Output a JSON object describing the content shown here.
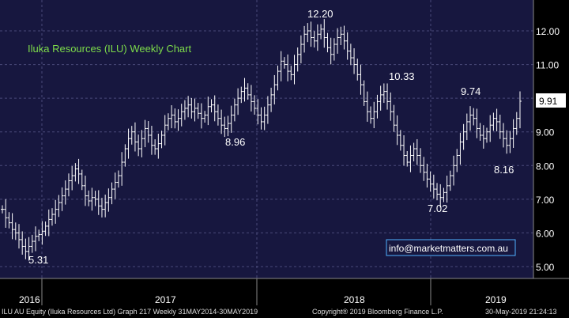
{
  "chart_data": {
    "type": "bar",
    "subtype": "weekly OHLC",
    "title": "Iluka Resources (ILU) Weekly Chart",
    "xlabel": "",
    "ylabel": "",
    "ylim": [
      4.6,
      12.7
    ],
    "y_ticks": [
      "5.00",
      "6.00",
      "7.00",
      "8.00",
      "9.00",
      "10.00",
      "11.00",
      "12.00"
    ],
    "x_year_labels": [
      "2016",
      "2017",
      "2018",
      "2019"
    ],
    "grid": true,
    "last_price_label": "9.91",
    "annotations": [
      {
        "text": "5.31",
        "value": 5.31
      },
      {
        "text": "8.96",
        "value": 8.96
      },
      {
        "text": "12.20",
        "value": 12.2
      },
      {
        "text": "10.33",
        "value": 10.33
      },
      {
        "text": "7.02",
        "value": 7.02
      },
      {
        "text": "9.74",
        "value": 9.74
      },
      {
        "text": "8.16",
        "value": 8.16
      }
    ],
    "weekly_close": [
      6.7,
      6.45,
      6.3,
      6.1,
      6.0,
      5.8,
      5.6,
      5.45,
      5.6,
      5.75,
      5.9,
      5.95,
      6.05,
      6.2,
      6.4,
      6.55,
      6.7,
      6.9,
      7.1,
      7.3,
      7.55,
      7.7,
      7.9,
      7.75,
      7.4,
      7.1,
      6.95,
      7.05,
      7.0,
      6.8,
      6.7,
      6.9,
      7.05,
      7.3,
      7.5,
      7.7,
      8.1,
      8.5,
      8.8,
      9.0,
      8.7,
      8.5,
      8.8,
      9.1,
      8.9,
      8.6,
      8.5,
      8.65,
      8.9,
      9.2,
      9.4,
      9.5,
      9.3,
      9.4,
      9.6,
      9.7,
      9.8,
      9.6,
      9.7,
      9.55,
      9.4,
      9.5,
      9.75,
      9.8,
      9.6,
      9.4,
      9.2,
      9.1,
      9.25,
      9.5,
      9.8,
      10.0,
      10.2,
      10.3,
      10.1,
      9.9,
      9.7,
      9.5,
      9.3,
      9.5,
      9.8,
      10.1,
      10.4,
      10.8,
      11.1,
      11.0,
      10.8,
      10.7,
      11.0,
      11.3,
      11.6,
      11.9,
      12.0,
      11.8,
      11.7,
      11.9,
      12.05,
      11.8,
      11.5,
      11.3,
      11.6,
      11.8,
      11.9,
      11.7,
      11.4,
      11.2,
      11.0,
      10.7,
      10.4,
      9.9,
      9.6,
      9.4,
      9.6,
      9.9,
      10.1,
      10.2,
      9.9,
      9.6,
      9.2,
      8.9,
      8.6,
      8.3,
      8.1,
      8.3,
      8.5,
      8.3,
      8.0,
      7.8,
      7.6,
      7.45,
      7.3,
      7.15,
      7.05,
      7.2,
      7.4,
      7.7,
      8.0,
      8.3,
      8.7,
      9.0,
      9.3,
      9.5,
      9.4,
      9.1,
      8.9,
      8.8,
      9.0,
      9.2,
      9.4,
      9.3,
      9.0,
      8.8,
      8.6,
      8.8,
      9.1,
      9.4,
      9.91
    ]
  },
  "watermark": "info@marketmatters.com.au",
  "footer": {
    "left": "ILU AU Equity (Iluka Resources Ltd) Graph 217  Weekly 31MAY2014-30MAY2019",
    "center": "Copyright® 2019 Bloomberg Finance L.P.",
    "right": "30-May-2019 21:24:13"
  },
  "colors": {
    "background": "#17173f",
    "grid": "#4a4a7a",
    "bars": "#ffffff",
    "title": "#7ddc4a",
    "watermark": "#ffffff"
  }
}
